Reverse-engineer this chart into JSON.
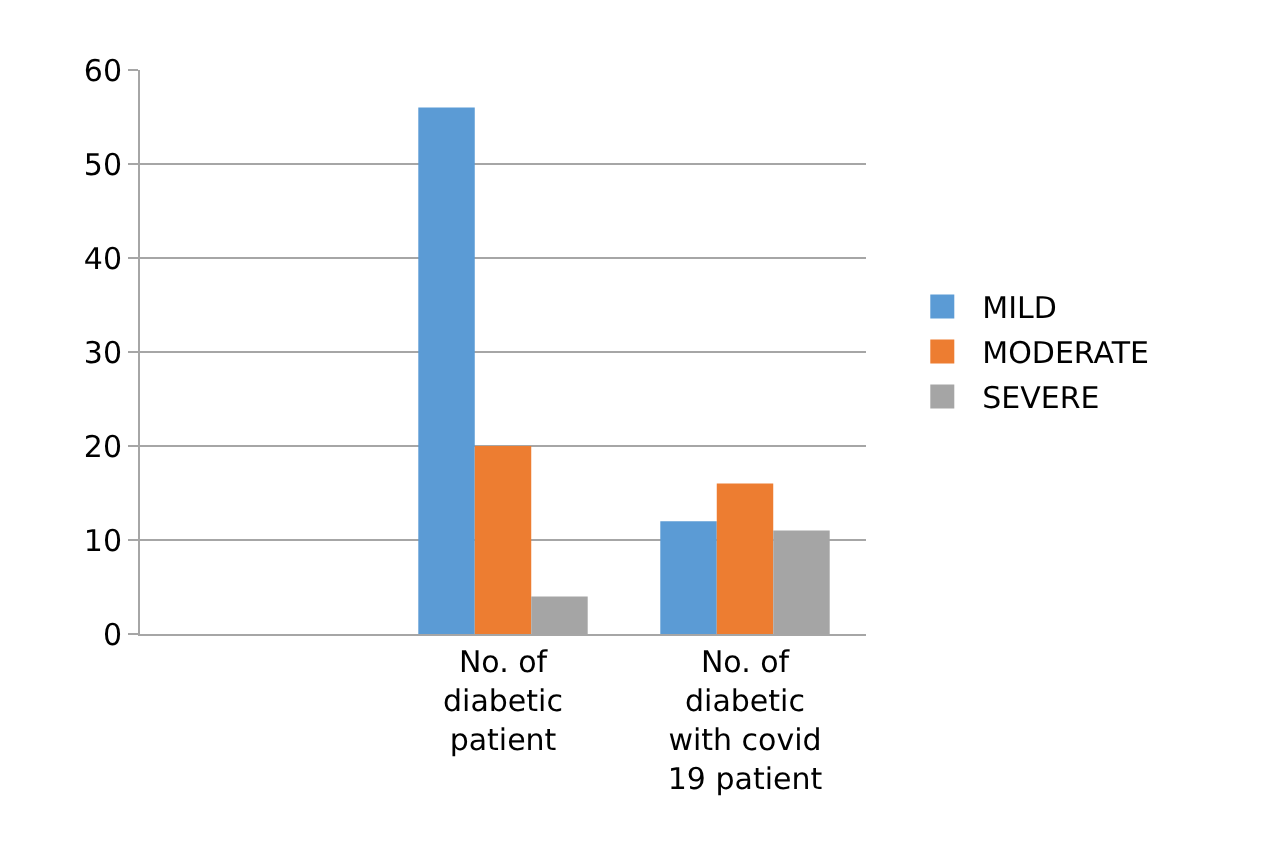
{
  "chart_data": {
    "type": "bar",
    "categories": [
      null,
      "No. of diabetic patient",
      "No. of diabetic with covid 19 patient"
    ],
    "series": [
      {
        "name": "MILD",
        "color": "#5b9bd5",
        "values": [
          null,
          56,
          12
        ]
      },
      {
        "name": "MODERATE",
        "color": "#ed7d31",
        "values": [
          null,
          20,
          16
        ]
      },
      {
        "name": "SEVERE",
        "color": "#a5a5a5",
        "values": [
          null,
          4,
          11
        ]
      }
    ],
    "ylim": [
      0,
      60
    ],
    "yticks": [
      0,
      10,
      20,
      30,
      40,
      50,
      60
    ],
    "grid": "y",
    "legend": "right"
  }
}
